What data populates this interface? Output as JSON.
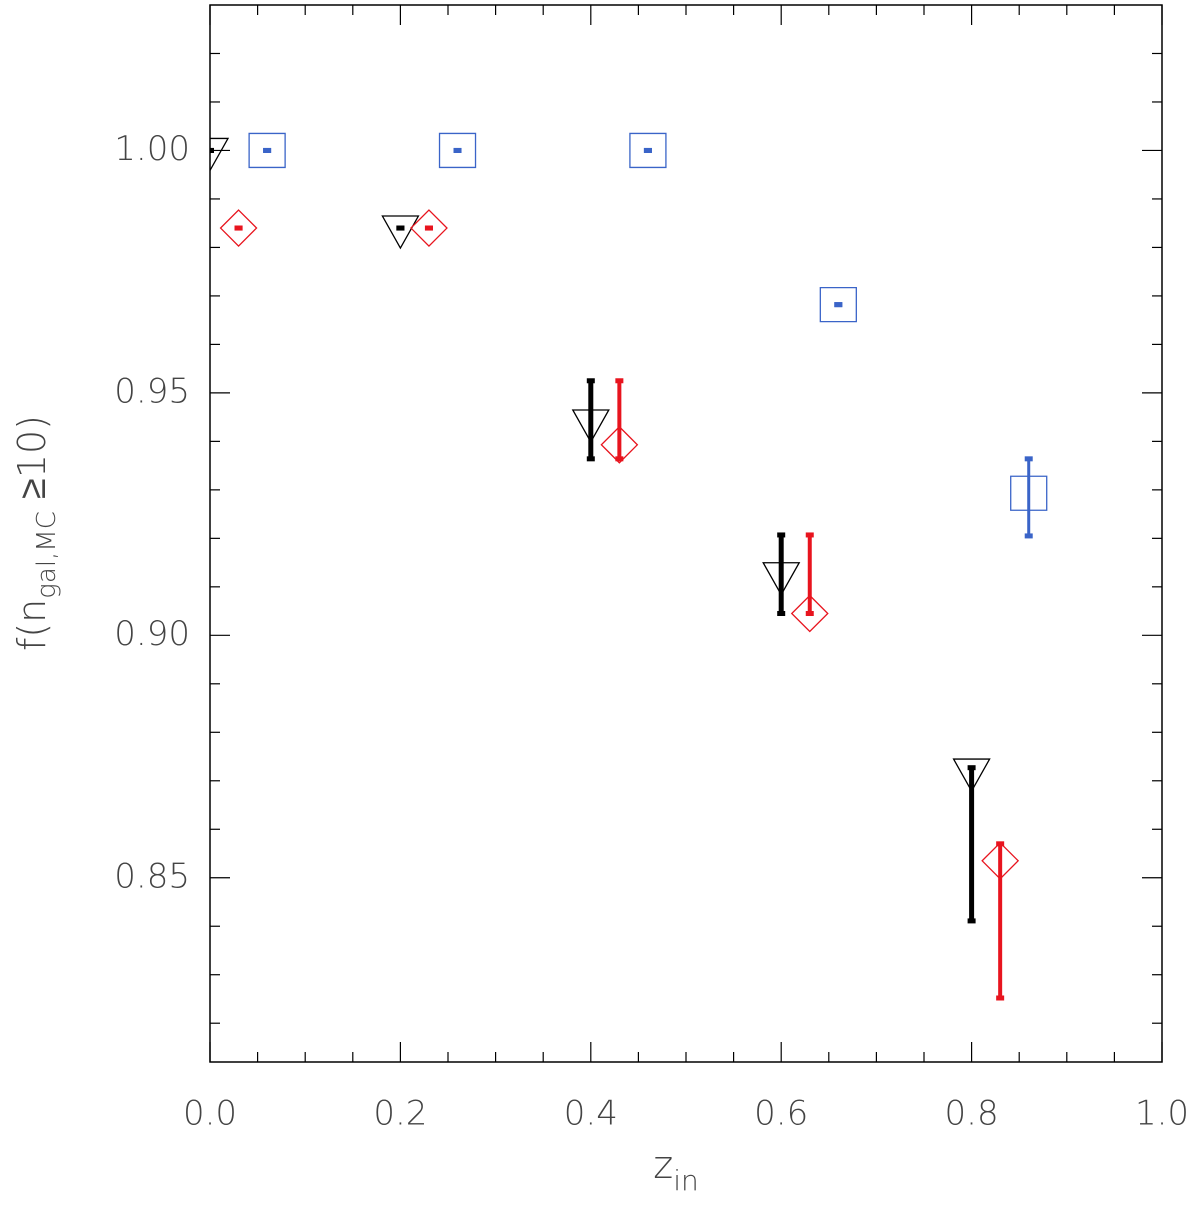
{
  "chart_data": {
    "type": "scatter",
    "ylabel": {
      "text": "f(n",
      "sub": "gal,MC",
      "rest": " ≥10)"
    },
    "xlabel": {
      "text": "z",
      "sub": "in"
    },
    "xlim": [
      0,
      1
    ],
    "ylim": [
      0.812,
      1.03
    ],
    "xticks": [
      {
        "value": 0,
        "label": "0.0"
      },
      {
        "value": 0.2,
        "label": "0.2"
      },
      {
        "value": 0.4,
        "label": "0.4"
      },
      {
        "value": 0.6,
        "label": "0.6"
      },
      {
        "value": 0.8,
        "label": "0.8"
      },
      {
        "value": 1,
        "label": "1.0"
      }
    ],
    "yticks": [
      {
        "value": 0.85,
        "label": "0.85"
      },
      {
        "value": 0.9,
        "label": "0.90"
      },
      {
        "value": 0.95,
        "label": "0.95"
      },
      {
        "value": 1,
        "label": "1.00"
      }
    ],
    "xminor_ticks": [
      0.05,
      0.1,
      0.15,
      0.25,
      0.3,
      0.35,
      0.45,
      0.5,
      0.55,
      0.65,
      0.7,
      0.75,
      0.85,
      0.9,
      0.95
    ],
    "yminor_ticks": [
      0.82,
      0.83,
      0.84,
      0.86,
      0.87,
      0.88,
      0.89,
      0.91,
      0.92,
      0.93,
      0.94,
      0.96,
      0.97,
      0.98,
      0.99,
      1.01,
      1.02
    ],
    "series": [
      {
        "color": "#000000",
        "marker": "triangle-down",
        "x": [
          0,
          0.2,
          0.4,
          0.6,
          0.8
        ],
        "values": [
          1.0,
          0.984,
          0.944,
          0.9125,
          0.872
        ],
        "lower": [
          1.0,
          0.984,
          0.9364,
          0.9045,
          0.8411
        ],
        "upper": [
          1.0,
          0.984,
          0.9525,
          0.9207,
          0.8727
        ]
      },
      {
        "color": "#e8141e",
        "marker": "diamond",
        "x": [
          0.03,
          0.23,
          0.43,
          0.63,
          0.83
        ],
        "values": [
          0.984,
          0.984,
          0.9393,
          0.9045,
          0.8535
        ],
        "lower": [
          0.984,
          0.984,
          0.9364,
          0.9045,
          0.8252
        ],
        "upper": [
          0.984,
          0.984,
          0.9525,
          0.9207,
          0.857
        ]
      },
      {
        "color": "#3a64c8",
        "marker": "square",
        "x": [
          0.06,
          0.26,
          0.46,
          0.66,
          0.86
        ],
        "values": [
          1.0,
          1.0,
          1.0,
          0.9682,
          0.9293
        ],
        "lower": [
          1.0,
          1.0,
          1.0,
          0.9682,
          0.9205
        ],
        "upper": [
          1.0,
          1.0,
          1.0,
          0.9682,
          0.9364
        ]
      }
    ]
  }
}
